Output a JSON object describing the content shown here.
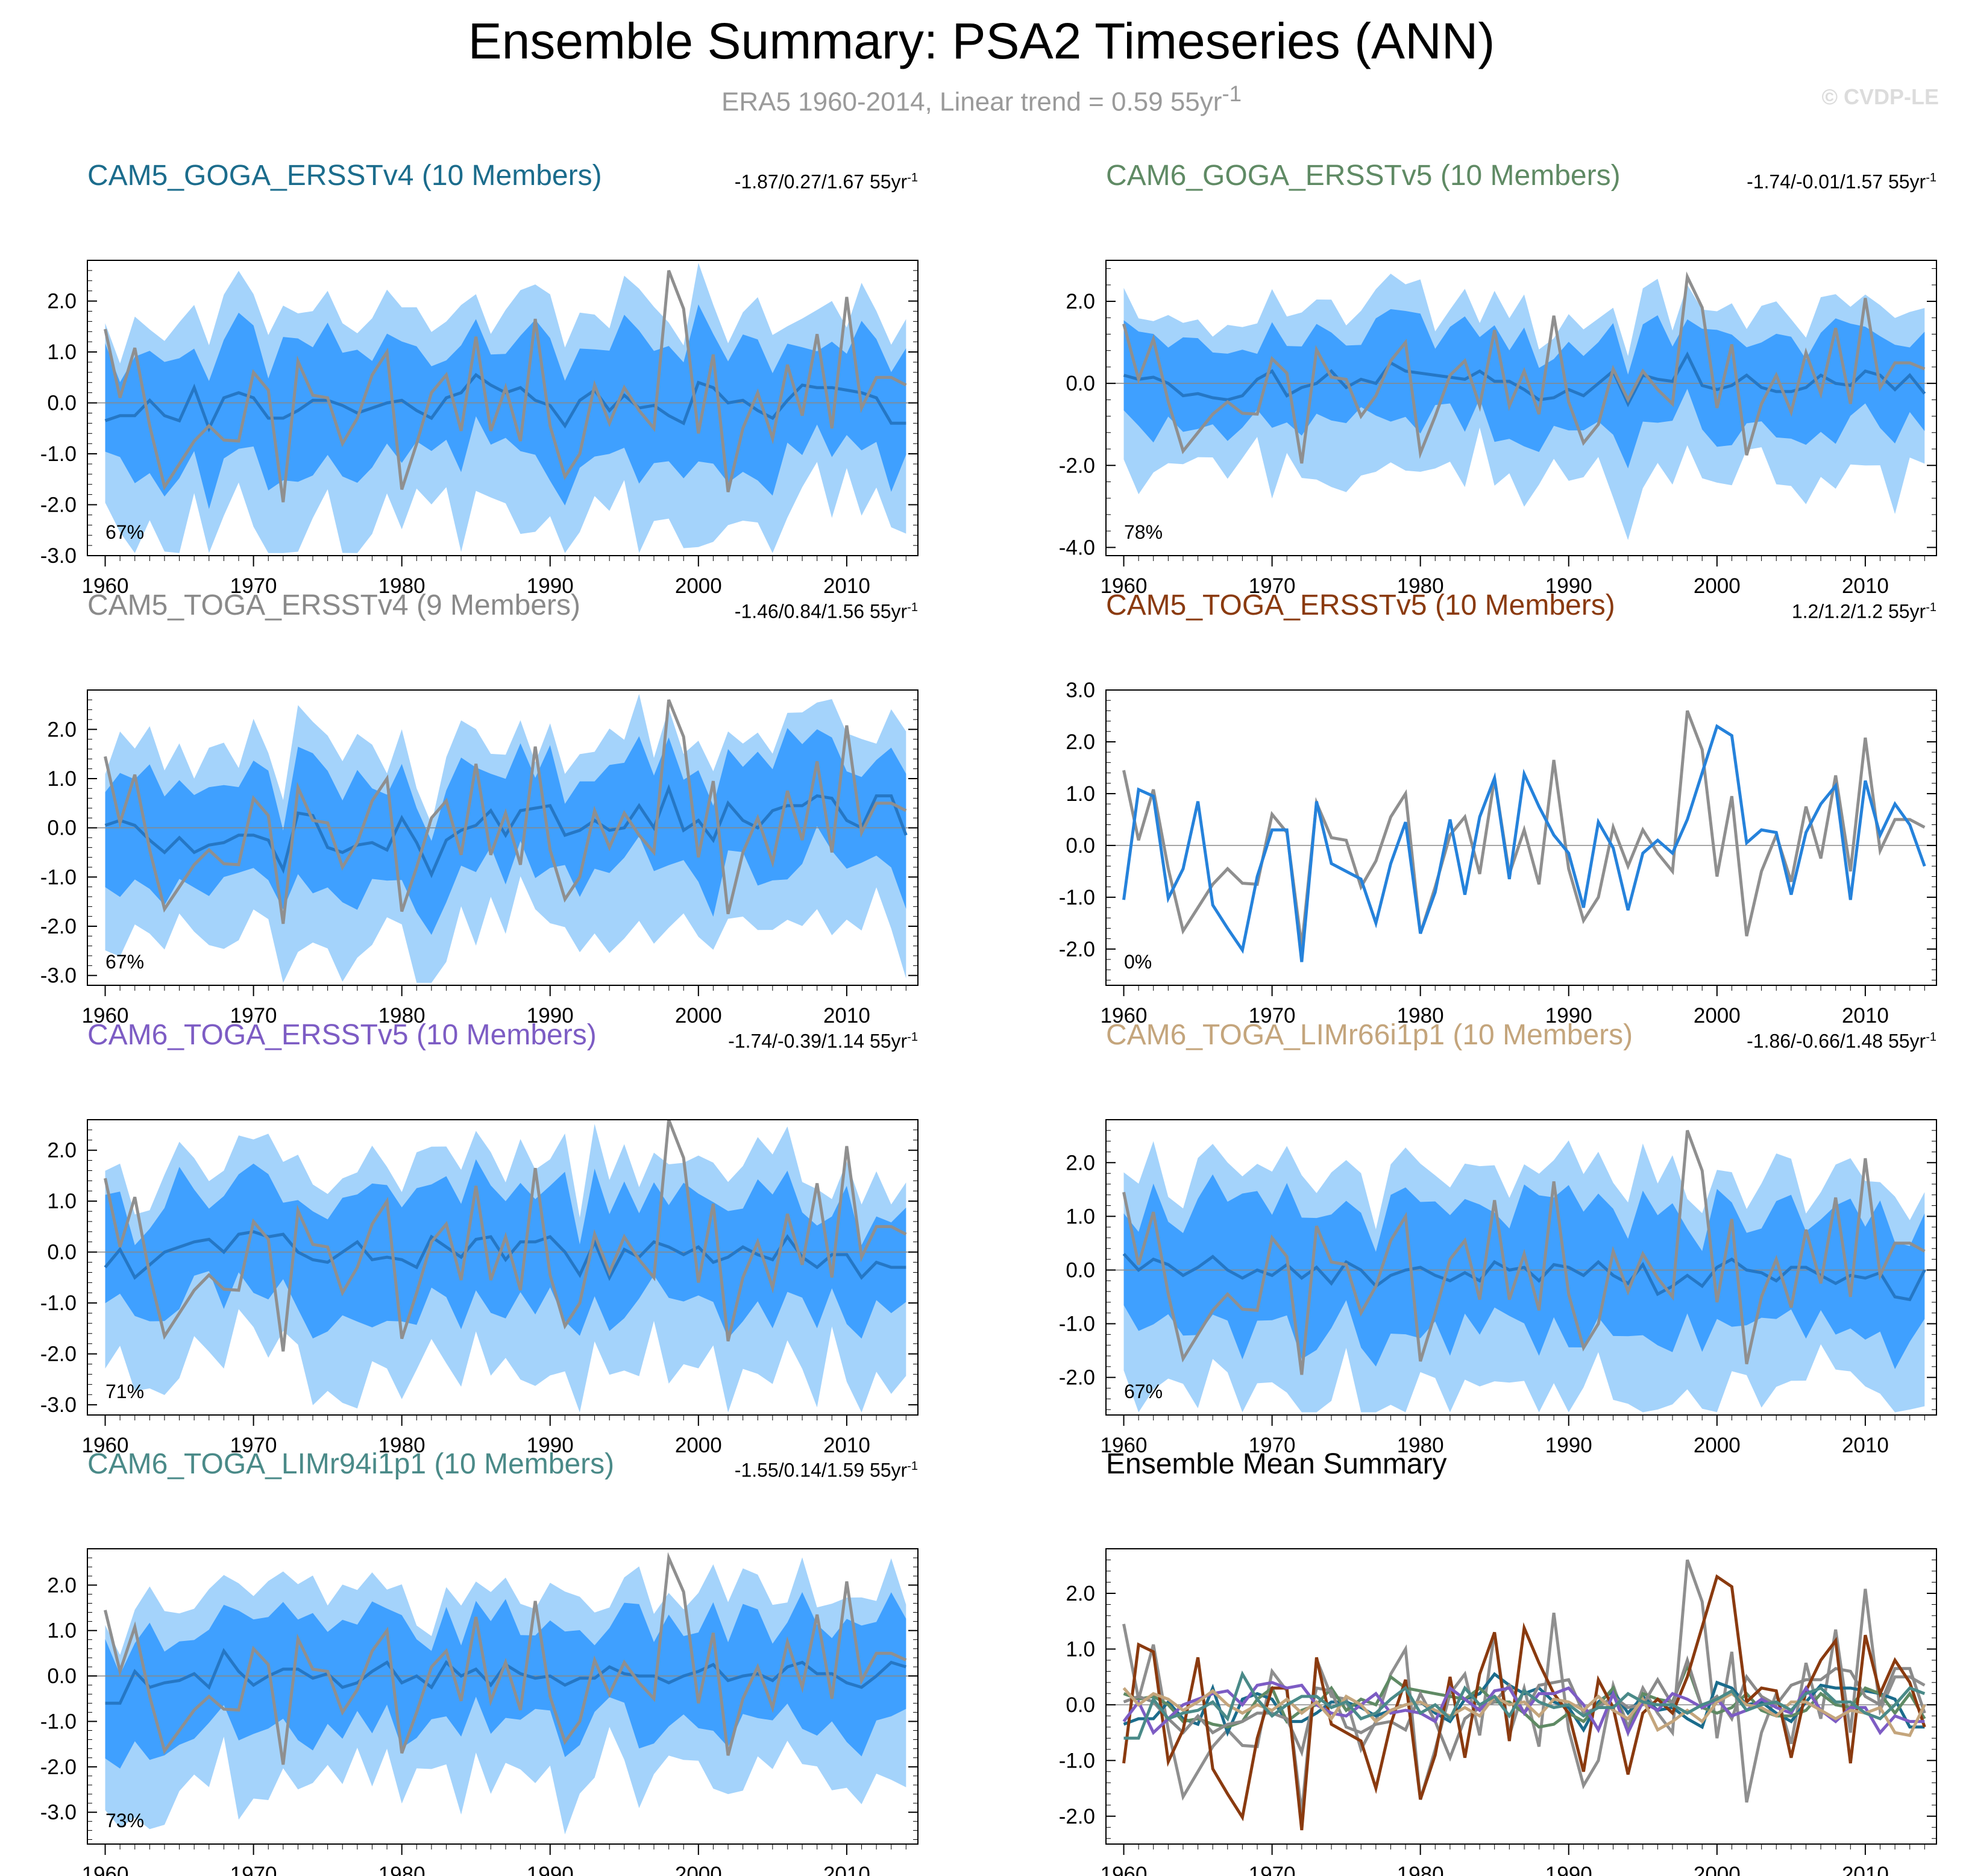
{
  "main_title": "Ensemble Summary: PSA2 Timeseries (ANN)",
  "subtitle": {
    "prefix": "ERA5 1960-2014, Linear trend = 0.59 55yr",
    "sup": "-1"
  },
  "watermark": "© CVDP-LE",
  "colors": {
    "observed": "#8f8f8f",
    "ens_mean": "#2577c5",
    "spread_inner": "#3fa0ff",
    "spread_outer": "#a4d3fb",
    "single_member": "#2582db"
  },
  "panels": [
    {
      "id": "cam5-goga-ersstv4",
      "title": "CAM5_GOGA_ERSSTv4 (10 Members)",
      "title_color": "#1b6c8c",
      "range": "-1.87/0.27/1.67 55yr",
      "range_sup": "-1",
      "percent": "67%"
    },
    {
      "id": "cam6-goga-ersstv5",
      "title": "CAM6_GOGA_ERSSTv5 (10 Members)",
      "title_color": "#5f8a64",
      "range": "-1.74/-0.01/1.57 55yr",
      "range_sup": "-1",
      "percent": "78%"
    },
    {
      "id": "cam5-toga-ersstv4",
      "title": "CAM5_TOGA_ERSSTv4 (9 Members)",
      "title_color": "#8a8a8a",
      "range": "-1.46/0.84/1.56 55yr",
      "range_sup": "-1",
      "percent": "67%"
    },
    {
      "id": "cam5-toga-ersstv5",
      "title": "CAM5_TOGA_ERSSTv5 (10 Members)",
      "title_color": "#8a3a0f",
      "range": "1.2/1.2/1.2 55yr",
      "range_sup": "-1",
      "percent": "0%"
    },
    {
      "id": "cam6-toga-ersstv5",
      "title": "CAM6_TOGA_ERSSTv5 (10 Members)",
      "title_color": "#7d5cc4",
      "range": "-1.74/-0.39/1.14 55yr",
      "range_sup": "-1",
      "percent": "71%"
    },
    {
      "id": "cam6-toga-limr66i1p1",
      "title": "CAM6_TOGA_LIMr66i1p1 (10 Members)",
      "title_color": "#c4a57c",
      "range": "-1.86/-0.66/1.48 55yr",
      "range_sup": "-1",
      "percent": "67%"
    },
    {
      "id": "cam6-toga-limr94i1p1",
      "title": "CAM6_TOGA_LIMr94i1p1 (10 Members)",
      "title_color": "#4a8a88",
      "range": "-1.55/0.14/1.59 55yr",
      "range_sup": "-1",
      "percent": "73%"
    }
  ],
  "summary_panel": {
    "title": "Ensemble Mean Summary"
  },
  "chart_data": [
    {
      "type": "line",
      "title": "CAM5_GOGA_ERSSTv4 (10 Members)",
      "x_range": [
        1960,
        2014
      ],
      "ylim": [
        -3.0,
        2.8
      ],
      "yticks": [
        -3.0,
        -2.0,
        -1.0,
        0.0,
        1.0,
        2.0
      ],
      "xticks": [
        1960,
        1970,
        1980,
        1990,
        2000,
        2010
      ],
      "series": [
        {
          "name": "ERA5 (observed)"
        },
        {
          "name": "Ensemble mean"
        },
        {
          "name": "Ensemble spread (min/max)"
        },
        {
          "name": "Ensemble spread (10-90%)"
        }
      ]
    },
    {
      "type": "line",
      "title": "CAM6_GOGA_ERSSTv5 (10 Members)",
      "x_range": [
        1960,
        2014
      ],
      "ylim": [
        -4.2,
        3.0
      ],
      "yticks": [
        -4.0,
        -2.0,
        0.0,
        2.0
      ],
      "xticks": [
        1960,
        1970,
        1980,
        1990,
        2000,
        2010
      ],
      "series": [
        {
          "name": "ERA5 (observed)"
        },
        {
          "name": "Ensemble mean"
        },
        {
          "name": "Ensemble spread (min/max)"
        },
        {
          "name": "Ensemble spread (10-90%)"
        }
      ]
    },
    {
      "type": "line",
      "title": "CAM5_TOGA_ERSSTv4 (9 Members)",
      "x_range": [
        1960,
        2014
      ],
      "ylim": [
        -3.2,
        2.8
      ],
      "yticks": [
        -3.0,
        -2.0,
        -1.0,
        0.0,
        1.0,
        2.0
      ],
      "xticks": [
        1960,
        1970,
        1980,
        1990,
        2000,
        2010
      ],
      "series": [
        {
          "name": "ERA5 (observed)"
        },
        {
          "name": "Ensemble mean"
        },
        {
          "name": "Ensemble spread (min/max)"
        },
        {
          "name": "Ensemble spread (10-90%)"
        }
      ]
    },
    {
      "type": "line",
      "title": "CAM5_TOGA_ERSSTv5 (10 Members)",
      "x_range": [
        1960,
        2014
      ],
      "ylim": [
        -2.7,
        3.0
      ],
      "yticks": [
        -2.0,
        -1.0,
        0.0,
        1.0,
        2.0,
        3.0
      ],
      "xticks": [
        1960,
        1970,
        1980,
        1990,
        2000,
        2010
      ],
      "series": [
        {
          "name": "ERA5 (observed)"
        },
        {
          "name": "Ensemble mean"
        }
      ]
    },
    {
      "type": "line",
      "title": "CAM6_TOGA_ERSSTv5 (10 Members)",
      "x_range": [
        1960,
        2014
      ],
      "ylim": [
        -3.2,
        2.6
      ],
      "yticks": [
        -3.0,
        -2.0,
        -1.0,
        0.0,
        1.0,
        2.0
      ],
      "xticks": [
        1960,
        1970,
        1980,
        1990,
        2000,
        2010
      ],
      "series": [
        {
          "name": "ERA5 (observed)"
        },
        {
          "name": "Ensemble mean"
        },
        {
          "name": "Ensemble spread (min/max)"
        },
        {
          "name": "Ensemble spread (10-90%)"
        }
      ]
    },
    {
      "type": "line",
      "title": "CAM6_TOGA_LIMr66i1p1 (10 Members)",
      "x_range": [
        1960,
        2014
      ],
      "ylim": [
        -2.7,
        2.8
      ],
      "yticks": [
        -2.0,
        -1.0,
        0.0,
        1.0,
        2.0
      ],
      "xticks": [
        1960,
        1970,
        1980,
        1990,
        2000,
        2010
      ],
      "series": [
        {
          "name": "ERA5 (observed)"
        },
        {
          "name": "Ensemble mean"
        },
        {
          "name": "Ensemble spread (min/max)"
        },
        {
          "name": "Ensemble spread (10-90%)"
        }
      ]
    },
    {
      "type": "line",
      "title": "CAM6_TOGA_LIMr94i1p1 (10 Members)",
      "x_range": [
        1960,
        2014
      ],
      "ylim": [
        -3.7,
        2.8
      ],
      "yticks": [
        -3.0,
        -2.0,
        -1.0,
        0.0,
        1.0,
        2.0
      ],
      "xticks": [
        1960,
        1970,
        1980,
        1990,
        2000,
        2010
      ],
      "series": [
        {
          "name": "ERA5 (observed)"
        },
        {
          "name": "Ensemble mean"
        },
        {
          "name": "Ensemble spread (min/max)"
        },
        {
          "name": "Ensemble spread (10-90%)"
        }
      ]
    },
    {
      "type": "line",
      "title": "Ensemble Mean Summary",
      "x_range": [
        1960,
        2014
      ],
      "ylim": [
        -2.5,
        2.8
      ],
      "yticks": [
        -2.0,
        -1.0,
        0.0,
        1.0,
        2.0
      ],
      "xticks": [
        1960,
        1970,
        1980,
        1990,
        2000,
        2010
      ],
      "series": [
        {
          "name": "ERA5 (observed)"
        },
        {
          "name": "CAM5_GOGA_ERSSTv4"
        },
        {
          "name": "CAM6_GOGA_ERSSTv5"
        },
        {
          "name": "CAM5_TOGA_ERSSTv4"
        },
        {
          "name": "CAM5_TOGA_ERSSTv5"
        },
        {
          "name": "CAM6_TOGA_ERSSTv5"
        },
        {
          "name": "CAM6_TOGA_LIMr66i1p1"
        },
        {
          "name": "CAM6_TOGA_LIMr94i1p1"
        }
      ]
    }
  ],
  "observed_values": [
    1.45,
    0.1,
    1.08,
    -0.45,
    -1.65,
    -1.2,
    -0.75,
    -0.45,
    -0.73,
    -0.75,
    0.6,
    0.25,
    -1.95,
    0.82,
    0.15,
    0.1,
    -0.8,
    -0.3,
    0.55,
    1.0,
    -1.7,
    -0.8,
    0.2,
    0.55,
    -0.55,
    1.3,
    -0.55,
    0.3,
    -0.75,
    1.65,
    -0.45,
    -1.45,
    -1.0,
    0.35,
    -0.4,
    0.3,
    -0.15,
    -0.5,
    2.6,
    1.85,
    -0.6,
    0.95,
    -1.75,
    -0.5,
    0.2,
    -0.7,
    0.75,
    -0.25,
    1.35,
    -0.5,
    2.08,
    -0.1,
    0.5,
    0.5,
    0.35
  ],
  "single_member_values": [
    -1.05,
    1.08,
    0.95,
    -1.02,
    -0.45,
    0.85,
    -1.15,
    -1.6,
    -2.02,
    -0.6,
    0.3,
    0.3,
    -2.25,
    0.85,
    -0.35,
    -0.5,
    -0.65,
    -1.5,
    -0.35,
    0.45,
    -1.7,
    -0.9,
    0.5,
    -0.95,
    0.55,
    1.3,
    -0.65,
    1.38,
    0.75,
    0.2,
    -0.15,
    -1.2,
    0.45,
    -0.05,
    -1.25,
    -0.15,
    0.1,
    -0.15,
    0.5,
    1.4,
    2.3,
    2.12,
    0.05,
    0.3,
    0.25,
    -0.95,
    0.25,
    0.8,
    1.15,
    -1.05,
    1.25,
    0.2,
    0.8,
    0.4,
    -0.4
  ],
  "ensemble_means": [
    [
      -0.35,
      -0.25,
      -0.25,
      0.05,
      -0.25,
      -0.35,
      0.3,
      -0.5,
      0.1,
      0.2,
      0.1,
      -0.3,
      -0.3,
      -0.15,
      0.05,
      0.05,
      -0.05,
      -0.2,
      -0.1,
      0.0,
      0.05,
      -0.15,
      -0.3,
      0.1,
      0.2,
      0.55,
      0.35,
      0.2,
      0.3,
      0.05,
      -0.05,
      -0.45,
      0.05,
      0.25,
      -0.15,
      0.15,
      -0.1,
      -0.05,
      -0.25,
      -0.4,
      0.4,
      0.3,
      0.0,
      0.05,
      -0.15,
      -0.3,
      0.05,
      0.35,
      0.3,
      0.3,
      0.25,
      0.2,
      0.1,
      -0.4,
      -0.4
    ],
    [
      0.2,
      0.1,
      0.15,
      0.0,
      -0.3,
      -0.25,
      -0.35,
      -0.4,
      -0.3,
      0.1,
      0.3,
      -0.3,
      -0.1,
      0.0,
      0.3,
      -0.1,
      0.1,
      0.0,
      0.5,
      0.3,
      0.25,
      0.2,
      0.15,
      0.1,
      0.3,
      0.05,
      0.05,
      -0.15,
      -0.4,
      -0.35,
      -0.15,
      -0.3,
      0.0,
      0.3,
      -0.5,
      0.2,
      0.1,
      0.05,
      0.7,
      -0.05,
      -0.15,
      -0.05,
      0.2,
      -0.1,
      -0.2,
      -0.2,
      -0.1,
      0.2,
      0.0,
      -0.05,
      0.3,
      0.2,
      -0.15,
      0.2,
      -0.25
    ],
    [
      0.05,
      0.15,
      0.05,
      -0.25,
      -0.5,
      -0.2,
      -0.5,
      -0.35,
      -0.3,
      -0.15,
      -0.15,
      -0.25,
      -0.85,
      0.3,
      0.25,
      -0.4,
      -0.5,
      -0.35,
      -0.3,
      -0.45,
      0.2,
      -0.3,
      -0.95,
      -0.25,
      -0.05,
      0.05,
      0.35,
      -0.15,
      0.35,
      0.4,
      0.45,
      -0.15,
      -0.05,
      0.15,
      -0.05,
      0.0,
      0.45,
      0.0,
      0.8,
      -0.05,
      0.15,
      -0.25,
      0.5,
      0.15,
      0.0,
      0.35,
      0.45,
      0.45,
      0.65,
      0.6,
      0.15,
      0.0,
      0.65,
      0.65,
      -0.15
    ],
    [
      -1.05,
      1.08,
      0.95,
      -1.02,
      -0.45,
      0.85,
      -1.15,
      -1.6,
      -2.02,
      -0.6,
      0.3,
      0.3,
      -2.25,
      0.85,
      -0.35,
      -0.5,
      -0.65,
      -1.5,
      -0.35,
      0.45,
      -1.7,
      -0.9,
      0.5,
      -0.95,
      0.55,
      1.3,
      -0.65,
      1.38,
      0.75,
      0.2,
      -0.15,
      -1.2,
      0.45,
      -0.05,
      -1.25,
      -0.15,
      0.1,
      -0.15,
      0.5,
      1.4,
      2.3,
      2.12,
      0.05,
      0.3,
      0.25,
      -0.95,
      0.25,
      0.8,
      1.15,
      -1.05,
      1.25,
      0.2,
      0.8,
      0.4,
      -0.4
    ],
    [
      -0.3,
      0.05,
      -0.5,
      -0.25,
      0.0,
      0.1,
      0.2,
      0.25,
      0.0,
      0.35,
      0.4,
      0.3,
      0.35,
      0.0,
      -0.15,
      -0.2,
      0.0,
      0.2,
      -0.15,
      -0.1,
      -0.15,
      -0.3,
      0.3,
      0.1,
      -0.1,
      0.25,
      0.3,
      -0.15,
      0.2,
      0.2,
      0.3,
      0.0,
      -0.45,
      0.2,
      -0.5,
      0.05,
      -0.1,
      0.2,
      0.1,
      -0.05,
      0.1,
      -0.2,
      -0.1,
      0.1,
      -0.05,
      -0.15,
      0.3,
      -0.1,
      -0.3,
      -0.05,
      -0.05,
      -0.5,
      -0.2,
      -0.3,
      -0.3
    ],
    [
      0.3,
      0.0,
      0.2,
      0.1,
      -0.1,
      0.05,
      0.25,
      0.0,
      -0.15,
      0.0,
      -0.1,
      0.1,
      -0.15,
      0.05,
      -0.25,
      0.15,
      0.0,
      -0.3,
      -0.1,
      0.0,
      0.05,
      -0.1,
      -0.2,
      -0.05,
      -0.2,
      0.15,
      0.0,
      0.05,
      -0.2,
      0.1,
      0.05,
      -0.1,
      0.15,
      -0.1,
      -0.25,
      0.1,
      -0.45,
      -0.3,
      -0.1,
      -0.3,
      0.05,
      0.2,
      0.0,
      -0.05,
      -0.2,
      0.05,
      0.05,
      -0.1,
      -0.25,
      -0.1,
      -0.15,
      -0.05,
      -0.5,
      -0.55,
      0.0
    ],
    [
      -0.6,
      -0.6,
      0.1,
      -0.25,
      -0.15,
      -0.1,
      0.05,
      -0.25,
      0.55,
      0.1,
      -0.2,
      0.0,
      0.15,
      0.15,
      -0.05,
      0.05,
      -0.25,
      -0.15,
      0.1,
      0.3,
      -0.15,
      0.0,
      -0.25,
      0.3,
      0.0,
      0.15,
      -0.2,
      0.25,
      0.05,
      -0.05,
      0.0,
      -0.2,
      -0.05,
      -0.05,
      0.2,
      0.05,
      0.0,
      0.0,
      -0.15,
      0.0,
      0.1,
      0.25,
      -0.1,
      0.0,
      0.05,
      -0.1,
      0.2,
      0.3,
      0.05,
      0.05,
      -0.15,
      -0.25,
      0.0,
      0.3,
      0.2
    ]
  ]
}
